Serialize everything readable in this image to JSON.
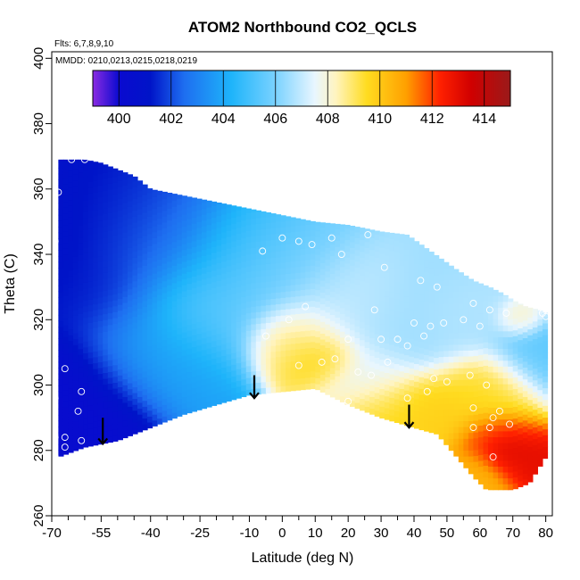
{
  "chart_data": {
    "type": "heatmap",
    "title": "ATOM2 Northbound CO2_QCLS",
    "subtitle_lines": [
      "Flts: 6,7,8,9,10",
      "MMDD: 0210,0213,0215,0218,0219"
    ],
    "xlabel": "Latitude (deg N)",
    "ylabel": "Theta (C)",
    "xlim": [
      -70,
      82
    ],
    "ylim": [
      260,
      402
    ],
    "x_major_ticks": [
      -70,
      -55,
      -40,
      -25,
      -10,
      0,
      10,
      20,
      30,
      40,
      50,
      60,
      70,
      80
    ],
    "x_tick_labels": [
      "-70",
      "-55",
      "-40",
      "-25",
      "-10",
      "0",
      "10",
      "20",
      "30",
      "40",
      "50",
      "60",
      "70",
      "80"
    ],
    "x_minor_ticks": [
      -65,
      -60,
      -50,
      -45,
      -35,
      -30,
      -20,
      -15,
      -5,
      5,
      15,
      25,
      35,
      45,
      55,
      65,
      75
    ],
    "y_ticks": [
      260,
      280,
      300,
      320,
      340,
      360,
      380,
      400
    ],
    "y_tick_labels": [
      "260",
      "280",
      "300",
      "320",
      "340",
      "360",
      "380",
      "400"
    ],
    "colorbar": {
      "range": [
        399,
        415
      ],
      "ticks": [
        400,
        402,
        404,
        406,
        408,
        410,
        412,
        414
      ],
      "tick_labels": [
        "400",
        "402",
        "404",
        "406",
        "408",
        "410",
        "412",
        "414"
      ],
      "stops": [
        {
          "v": 399,
          "c": "#8a2be2"
        },
        {
          "v": 400,
          "c": "#0a0ad0"
        },
        {
          "v": 401.2,
          "c": "#0014c8"
        },
        {
          "v": 402.5,
          "c": "#1e6ef0"
        },
        {
          "v": 404.3,
          "c": "#1eb4fa"
        },
        {
          "v": 406,
          "c": "#7ad2ff"
        },
        {
          "v": 407.5,
          "c": "#e8f6ff"
        },
        {
          "v": 408.3,
          "c": "#fff4c0"
        },
        {
          "v": 409.5,
          "c": "#ffdc20"
        },
        {
          "v": 411,
          "c": "#ffa000"
        },
        {
          "v": 412.3,
          "c": "#ff2000"
        },
        {
          "v": 413.5,
          "c": "#d00000"
        },
        {
          "v": 415,
          "c": "#9a1a1a"
        }
      ]
    },
    "field_domain": {
      "top": [
        [
          -68,
          369
        ],
        [
          -60,
          369
        ],
        [
          -55,
          368
        ],
        [
          -45,
          364
        ],
        [
          -40,
          360
        ],
        [
          -35,
          359
        ],
        [
          -25,
          357
        ],
        [
          -15,
          355
        ],
        [
          -5,
          353
        ],
        [
          10,
          350
        ],
        [
          20,
          349
        ],
        [
          30,
          347
        ],
        [
          38,
          346
        ],
        [
          45,
          341
        ],
        [
          52,
          336
        ],
        [
          58,
          332
        ],
        [
          63,
          330
        ],
        [
          67,
          328
        ],
        [
          70,
          326
        ],
        [
          74,
          324
        ],
        [
          78,
          323
        ],
        [
          80,
          322
        ]
      ],
      "bottom": [
        [
          -68,
          278
        ],
        [
          -60,
          281
        ],
        [
          -50,
          283
        ],
        [
          -40,
          287
        ],
        [
          -30,
          291
        ],
        [
          -20,
          294
        ],
        [
          -10,
          297
        ],
        [
          0,
          298
        ],
        [
          10,
          299
        ],
        [
          20,
          294
        ],
        [
          30,
          290
        ],
        [
          40,
          287
        ],
        [
          47,
          285
        ],
        [
          53,
          278
        ],
        [
          58,
          272
        ],
        [
          62,
          268
        ],
        [
          70,
          268
        ],
        [
          75,
          270
        ],
        [
          80,
          278
        ]
      ]
    },
    "field_features": [
      {
        "lat": -66,
        "theta": 300,
        "co2": 400.2,
        "radius": 12
      },
      {
        "lat": -62,
        "theta": 288,
        "co2": 400.3,
        "radius": 10
      },
      {
        "lat": -66,
        "theta": 350,
        "co2": 400.5,
        "radius": 16
      },
      {
        "lat": -60,
        "theta": 330,
        "co2": 401.3,
        "radius": 14
      },
      {
        "lat": -55,
        "theta": 355,
        "co2": 401.5,
        "radius": 12
      },
      {
        "lat": -40,
        "theta": 345,
        "co2": 402.8,
        "radius": 14
      },
      {
        "lat": -40,
        "theta": 310,
        "co2": 403.8,
        "radius": 12
      },
      {
        "lat": -25,
        "theta": 325,
        "co2": 405.5,
        "radius": 12
      },
      {
        "lat": -10,
        "theta": 340,
        "co2": 404.5,
        "radius": 12
      },
      {
        "lat": 0,
        "theta": 335,
        "co2": 406.5,
        "radius": 12
      },
      {
        "lat": 5,
        "theta": 315,
        "co2": 409.0,
        "radius": 8
      },
      {
        "lat": 12,
        "theta": 308,
        "co2": 409.8,
        "radius": 6
      },
      {
        "lat": 20,
        "theta": 325,
        "co2": 407.0,
        "radius": 10
      },
      {
        "lat": 25,
        "theta": 302,
        "co2": 407.5,
        "radius": 8
      },
      {
        "lat": 30,
        "theta": 292,
        "co2": 409.5,
        "radius": 8
      },
      {
        "lat": 40,
        "theta": 320,
        "co2": 406.5,
        "radius": 12
      },
      {
        "lat": 45,
        "theta": 292,
        "co2": 409.8,
        "radius": 8
      },
      {
        "lat": 55,
        "theta": 320,
        "co2": 406.8,
        "radius": 8
      },
      {
        "lat": 62,
        "theta": 300,
        "co2": 409.5,
        "radius": 8
      },
      {
        "lat": 65,
        "theta": 283,
        "co2": 412.0,
        "radius": 6
      },
      {
        "lat": 68,
        "theta": 280,
        "co2": 413.5,
        "radius": 4
      },
      {
        "lat": 72,
        "theta": 276,
        "co2": 413.0,
        "radius": 5
      },
      {
        "lat": 60,
        "theta": 272,
        "co2": 410.5,
        "radius": 6
      },
      {
        "lat": 76,
        "theta": 310,
        "co2": 405.5,
        "radius": 8
      },
      {
        "lat": 72,
        "theta": 320,
        "co2": 408.5,
        "radius": 4
      }
    ],
    "samples": [
      [
        -64,
        369
      ],
      [
        -60,
        369
      ],
      [
        -68,
        359
      ],
      [
        -69,
        344
      ],
      [
        -66,
        305
      ],
      [
        -69,
        296
      ],
      [
        -61,
        298
      ],
      [
        -62,
        292
      ],
      [
        -69,
        284
      ],
      [
        -66,
        284
      ],
      [
        -61,
        283
      ],
      [
        -66,
        281
      ],
      [
        -69,
        278
      ],
      [
        -6,
        341
      ],
      [
        0,
        345
      ],
      [
        5,
        344
      ],
      [
        9,
        343
      ],
      [
        15,
        345
      ],
      [
        18,
        340
      ],
      [
        26,
        346
      ],
      [
        31,
        336
      ],
      [
        42,
        332
      ],
      [
        47,
        330
      ],
      [
        58,
        325
      ],
      [
        63,
        323
      ],
      [
        68,
        322
      ],
      [
        79,
        322
      ],
      [
        80,
        321
      ],
      [
        7,
        324
      ],
      [
        2,
        320
      ],
      [
        28,
        323
      ],
      [
        40,
        319
      ],
      [
        45,
        318
      ],
      [
        49,
        319
      ],
      [
        55,
        320
      ],
      [
        60,
        318
      ],
      [
        43,
        315
      ],
      [
        -5,
        315
      ],
      [
        20,
        314
      ],
      [
        30,
        314
      ],
      [
        35,
        314
      ],
      [
        38,
        312
      ],
      [
        32,
        307
      ],
      [
        27,
        303
      ],
      [
        23,
        304
      ],
      [
        12,
        307
      ],
      [
        16,
        308
      ],
      [
        5,
        306
      ],
      [
        38,
        296
      ],
      [
        20,
        295
      ],
      [
        44,
        298
      ],
      [
        46,
        302
      ],
      [
        50,
        301
      ],
      [
        57,
        303
      ],
      [
        62,
        300
      ],
      [
        58,
        293
      ],
      [
        64,
        290
      ],
      [
        66,
        292
      ],
      [
        69,
        288
      ],
      [
        58,
        287
      ],
      [
        63,
        287
      ],
      [
        64,
        278
      ],
      [
        72,
        267
      ]
    ],
    "arrows": [
      {
        "lat": -54.5,
        "theta_top": 290,
        "theta_tip": 282
      },
      {
        "lat": -8.5,
        "theta_top": 303,
        "theta_tip": 296
      },
      {
        "lat": 38.5,
        "theta_top": 294,
        "theta_tip": 287
      }
    ]
  }
}
